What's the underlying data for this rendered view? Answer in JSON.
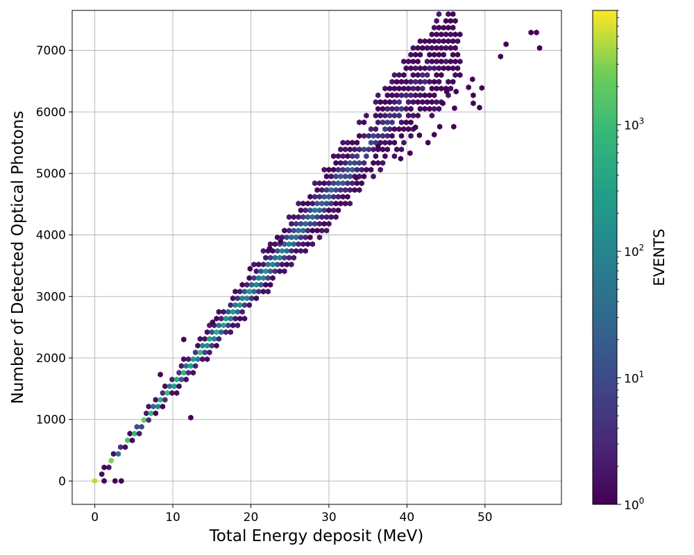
{
  "chart_data": {
    "type": "hexbin",
    "title": "",
    "xlabel": "Total Energy deposit (MeV)",
    "ylabel": "Number of Detected Optical Photons",
    "xlim": [
      -2.9,
      59.8
    ],
    "ylim": [
      -380,
      7650
    ],
    "xticks": [
      0,
      10,
      20,
      30,
      40,
      50
    ],
    "yticks": [
      0,
      1000,
      2000,
      3000,
      4000,
      5000,
      6000,
      7000
    ],
    "grid": true,
    "colormap": "viridis",
    "colorbar": {
      "label": "EVENTS",
      "scale": "log",
      "range": [
        1,
        8000
      ],
      "ticks": [
        {
          "value": 1,
          "base": "10",
          "exp": "0"
        },
        {
          "value": 10,
          "base": "10",
          "exp": "1"
        },
        {
          "value": 100,
          "base": "10",
          "exp": "2"
        },
        {
          "value": 1000,
          "base": "10",
          "exp": "3"
        }
      ]
    },
    "band": {
      "description": "Linear correlation: photons ≈ 155 × energy (MeV); density highest near origin",
      "slope_photons_per_mev": 155,
      "energy_range": [
        0,
        57
      ]
    },
    "outliers": [
      [
        1.2,
        0
      ],
      [
        2.6,
        0
      ],
      [
        3.4,
        0
      ],
      [
        12.3,
        1030
      ],
      [
        8.4,
        1730
      ],
      [
        22.4,
        3780
      ],
      [
        23.8,
        3890
      ],
      [
        19.9,
        3450
      ],
      [
        15.1,
        2580
      ],
      [
        11.4,
        2300
      ],
      [
        36.3,
        5440
      ],
      [
        33.5,
        4930
      ],
      [
        39.2,
        5240
      ],
      [
        41.1,
        5750
      ],
      [
        41.6,
        5620
      ],
      [
        43.5,
        5630
      ],
      [
        44.2,
        5760
      ],
      [
        44.6,
        6140
      ],
      [
        45.1,
        6330
      ],
      [
        46.3,
        6330
      ],
      [
        46.1,
        6060
      ],
      [
        46.0,
        5760
      ],
      [
        47.9,
        6400
      ],
      [
        48.4,
        6530
      ],
      [
        48.5,
        6270
      ],
      [
        48.5,
        6140
      ],
      [
        49.3,
        6070
      ],
      [
        49.6,
        6390
      ],
      [
        52.0,
        6900
      ],
      [
        52.7,
        7100
      ],
      [
        55.9,
        7290
      ],
      [
        56.6,
        7290
      ],
      [
        57.0,
        7040
      ],
      [
        42.7,
        5500
      ],
      [
        40.4,
        5330
      ]
    ]
  }
}
